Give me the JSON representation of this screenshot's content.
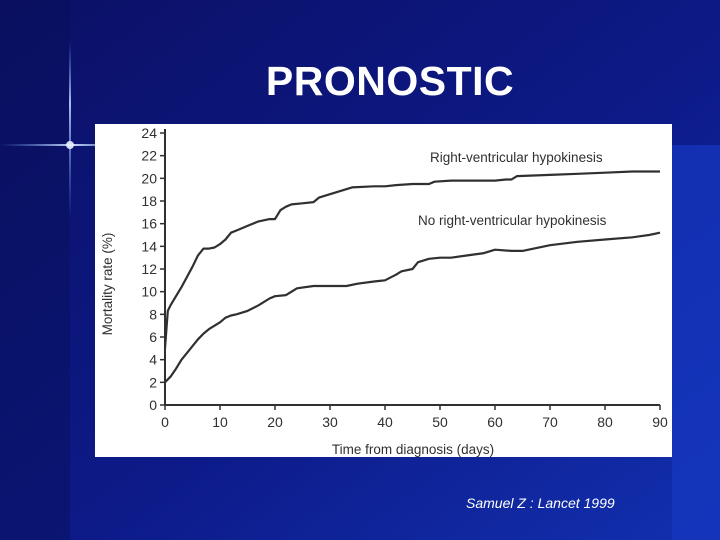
{
  "slide": {
    "title": "PRONOSTIC",
    "citation": "Samuel Z : Lancet 1999"
  },
  "colors": {
    "background": "#0a1270",
    "panel": "#ffffff",
    "ink": "#303030",
    "title": "#ffffff"
  },
  "chart_data": {
    "type": "line",
    "title": "",
    "xlabel": "Time from diagnosis (days)",
    "ylabel": "Mortality rate (%)",
    "xlim": [
      0,
      90
    ],
    "ylim": [
      0,
      24
    ],
    "xticks": [
      0,
      10,
      20,
      30,
      40,
      50,
      60,
      70,
      80,
      90
    ],
    "yticks": [
      0,
      2,
      4,
      6,
      8,
      10,
      12,
      14,
      16,
      18,
      20,
      22,
      24
    ],
    "grid": false,
    "legend": "labels on lines",
    "series": [
      {
        "name": "Right-ventricular hypokinesis",
        "x": [
          0,
          0.5,
          1,
          2,
          3,
          4,
          5,
          6,
          7,
          8,
          9,
          10,
          11,
          12,
          13,
          15,
          17,
          19,
          20,
          21,
          22,
          23,
          25,
          27,
          28,
          30,
          32,
          34,
          38,
          40,
          42,
          45,
          48,
          49,
          52,
          55,
          60,
          62,
          63,
          64,
          70,
          75,
          80,
          85,
          90
        ],
        "y": [
          5,
          8.3,
          8.8,
          9.6,
          10.4,
          11.3,
          12.2,
          13.2,
          13.8,
          13.8,
          13.9,
          14.2,
          14.6,
          15.2,
          15.4,
          15.8,
          16.2,
          16.4,
          16.4,
          17.2,
          17.5,
          17.7,
          17.8,
          17.9,
          18.3,
          18.6,
          18.9,
          19.2,
          19.3,
          19.3,
          19.4,
          19.5,
          19.5,
          19.7,
          19.8,
          19.8,
          19.8,
          19.9,
          19.9,
          20.2,
          20.3,
          20.4,
          20.5,
          20.6,
          20.6
        ]
      },
      {
        "name": "No right-ventricular hypokinesis",
        "x": [
          0,
          1,
          2,
          3,
          4,
          5,
          6,
          7,
          8,
          9,
          10,
          11,
          12,
          13,
          15,
          17,
          19,
          20,
          22,
          24,
          27,
          30,
          33,
          35,
          38,
          40,
          42,
          43,
          45,
          46,
          48,
          50,
          52,
          55,
          58,
          60,
          63,
          65,
          70,
          75,
          80,
          85,
          88,
          90
        ],
        "y": [
          2,
          2.5,
          3.2,
          4,
          4.6,
          5.2,
          5.8,
          6.3,
          6.7,
          7,
          7.3,
          7.7,
          7.9,
          8,
          8.3,
          8.8,
          9.4,
          9.6,
          9.7,
          10.3,
          10.5,
          10.5,
          10.5,
          10.7,
          10.9,
          11,
          11.5,
          11.8,
          12,
          12.6,
          12.9,
          13,
          13,
          13.2,
          13.4,
          13.7,
          13.6,
          13.6,
          14.1,
          14.4,
          14.6,
          14.8,
          15,
          15.2
        ]
      }
    ]
  }
}
